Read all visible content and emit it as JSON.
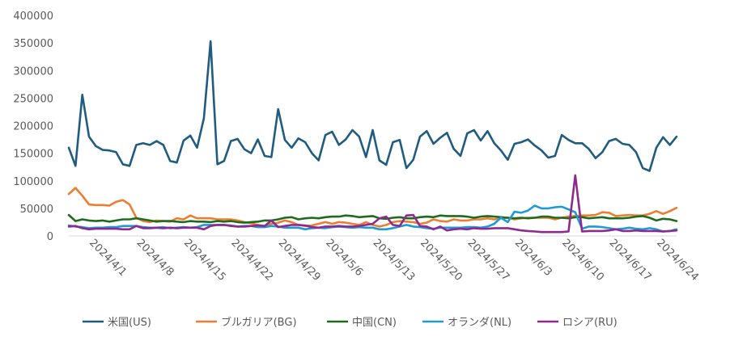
{
  "chart_data": {
    "type": "line",
    "title": "",
    "xlabel": "",
    "ylabel": "",
    "ylim": [
      0,
      400000
    ],
    "yticks": [
      0,
      50000,
      100000,
      150000,
      200000,
      250000,
      300000,
      350000,
      400000
    ],
    "ytick_labels": [
      "0",
      "50000",
      "100000",
      "150000",
      "200000",
      "250000",
      "300000",
      "350000",
      "400000"
    ],
    "grid": false,
    "legend_position": "bottom",
    "x_start": "2024-03-29",
    "x_tick_labels": [
      "2024/4/1",
      "2024/4/8",
      "2024/4/15",
      "2024/4/22",
      "2024/4/29",
      "2024/5/6",
      "2024/5/13",
      "2024/5/20",
      "2024/5/27",
      "2024/6/3",
      "2024/6/10",
      "2024/6/17",
      "2024/6/24"
    ],
    "series": [
      {
        "name": "米国(US)",
        "color": "#1F5C7F",
        "values": [
          160000,
          127000,
          256000,
          180000,
          163000,
          156000,
          155000,
          152000,
          130000,
          127000,
          165000,
          168000,
          165000,
          172000,
          165000,
          136000,
          133000,
          173000,
          182000,
          160000,
          213000,
          353000,
          130000,
          136000,
          172000,
          176000,
          157000,
          150000,
          175000,
          145000,
          143000,
          230000,
          174000,
          160000,
          177000,
          170000,
          150000,
          137000,
          183000,
          189000,
          165000,
          175000,
          192000,
          180000,
          143000,
          192000,
          137000,
          129000,
          170000,
          174000,
          123000,
          138000,
          180000,
          190000,
          167000,
          178000,
          187000,
          158000,
          145000,
          186000,
          192000,
          173000,
          190000,
          168000,
          155000,
          138000,
          167000,
          170000,
          175000,
          164000,
          155000,
          142000,
          145000,
          183000,
          174000,
          168000,
          168000,
          158000,
          141000,
          152000,
          172000,
          176000,
          167000,
          165000,
          152000,
          123000,
          118000,
          160000,
          179000,
          165000,
          180000
        ]
      },
      {
        "name": "ブルガリア(BG)",
        "color": "#ED7D31",
        "values": [
          76000,
          87000,
          73000,
          57000,
          56000,
          56000,
          55000,
          62000,
          65000,
          57000,
          33000,
          27000,
          25000,
          28000,
          27000,
          26000,
          32000,
          30000,
          37000,
          32000,
          32000,
          32000,
          30000,
          30000,
          30000,
          28000,
          25000,
          23000,
          20000,
          18000,
          22000,
          24000,
          28000,
          25000,
          20000,
          18000,
          19000,
          22000,
          25000,
          22000,
          25000,
          24000,
          22000,
          20000,
          25000,
          20000,
          17000,
          20000,
          25000,
          27000,
          26000,
          25000,
          22000,
          24000,
          30000,
          27000,
          26000,
          30000,
          28000,
          28000,
          30000,
          30000,
          32000,
          30000,
          32000,
          33000,
          30000,
          32000,
          33000,
          33000,
          33000,
          33000,
          30000,
          33000,
          35000,
          36000,
          37000,
          37000,
          38000,
          43000,
          42000,
          36000,
          37000,
          38000,
          37000,
          37000,
          40000,
          45000,
          40000,
          45000,
          51000
        ]
      },
      {
        "name": "中国(CN)",
        "color": "#1E6B1E",
        "values": [
          38000,
          27000,
          30000,
          28000,
          27000,
          28000,
          26000,
          28000,
          30000,
          30000,
          32000,
          30000,
          28000,
          26000,
          27000,
          27000,
          26000,
          25000,
          27000,
          26000,
          26000,
          25000,
          27000,
          26000,
          27000,
          25000,
          24000,
          25000,
          26000,
          28000,
          28000,
          30000,
          33000,
          34000,
          30000,
          32000,
          33000,
          32000,
          34000,
          35000,
          35000,
          37000,
          36000,
          34000,
          35000,
          36000,
          32000,
          31000,
          33000,
          34000,
          32000,
          32000,
          34000,
          35000,
          34000,
          37000,
          36000,
          36000,
          36000,
          35000,
          33000,
          35000,
          36000,
          35000,
          34000,
          33000,
          32000,
          33000,
          32000,
          33000,
          35000,
          35000,
          33000,
          33000,
          32000,
          34000,
          34000,
          32000,
          33000,
          34000,
          32000,
          32000,
          32000,
          33000,
          35000,
          36000,
          33000,
          28000,
          31000,
          30000,
          27000
        ]
      },
      {
        "name": "オランダ(NL)",
        "color": "#1F9AD6",
        "values": [
          19000,
          17000,
          16000,
          14000,
          15000,
          15000,
          16000,
          16000,
          18000,
          18000,
          18000,
          16000,
          15000,
          15000,
          16000,
          14000,
          15000,
          16000,
          15000,
          16000,
          20000,
          20000,
          20000,
          20000,
          19000,
          17000,
          18000,
          18000,
          16000,
          16000,
          18000,
          17000,
          15000,
          15000,
          15000,
          12000,
          14000,
          15000,
          14000,
          16000,
          17000,
          16000,
          15000,
          16000,
          15000,
          15000,
          12000,
          12000,
          14000,
          17000,
          20000,
          17000,
          16000,
          14000,
          13000,
          15000,
          15000,
          15000,
          15000,
          16000,
          16000,
          15000,
          17000,
          22000,
          33000,
          25000,
          44000,
          42000,
          46000,
          55000,
          50000,
          50000,
          52000,
          53000,
          48000,
          43000,
          13000,
          17000,
          17000,
          16000,
          14000,
          12000,
          13000,
          15000,
          13000,
          12000,
          14000,
          12000,
          8000,
          9000,
          12000
        ]
      },
      {
        "name": "ロシア(RU)",
        "color": "#8E2A8E",
        "values": [
          17000,
          18000,
          14000,
          12000,
          13000,
          13000,
          13000,
          13000,
          12000,
          12000,
          18000,
          14000,
          14000,
          15000,
          14000,
          15000,
          14000,
          15000,
          15000,
          15000,
          12000,
          18000,
          20000,
          20000,
          18000,
          17000,
          17000,
          18000,
          19000,
          18000,
          28000,
          16000,
          18000,
          20000,
          20000,
          19000,
          16000,
          15000,
          17000,
          17000,
          18000,
          17000,
          17000,
          18000,
          20000,
          22000,
          32000,
          35000,
          20000,
          18000,
          37000,
          38000,
          18000,
          17000,
          12000,
          17000,
          10000,
          12000,
          13000,
          12000,
          14000,
          13000,
          13000,
          14000,
          14000,
          14000,
          12000,
          10000,
          9000,
          8000,
          7000,
          7000,
          7000,
          7000,
          8000,
          110000,
          8000,
          9000,
          9000,
          9000,
          10000,
          12000,
          9000,
          9000,
          10000,
          9000,
          9000,
          9000,
          8000,
          9000,
          10000
        ]
      }
    ]
  }
}
